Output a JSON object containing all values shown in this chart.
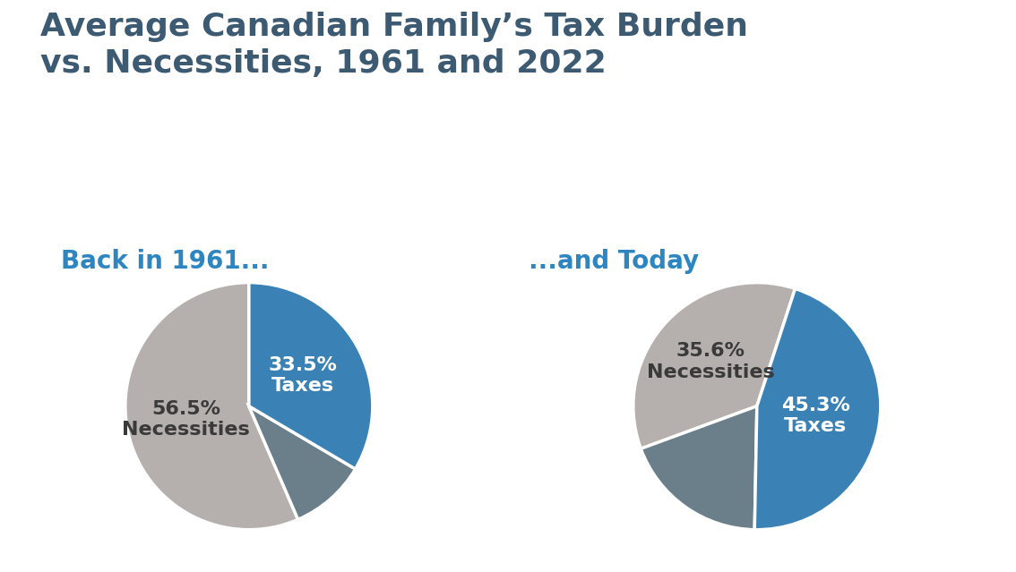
{
  "title_line1": "Average Canadian Family’s Tax Burden",
  "title_line2": "vs. Necessities, 1961 and 2022",
  "title_color": "#3d5a73",
  "title_fontsize": 26,
  "subtitle_1961": "Back in 1961...",
  "subtitle_today": "...and Today",
  "subtitle_color": "#2e86c1",
  "subtitle_fontsize": 20,
  "chart1": {
    "slices": [
      56.5,
      10.0,
      33.5
    ],
    "colors": [
      "#b5b0ad",
      "#6b7f8a",
      "#3a82b5"
    ],
    "startangle": 90,
    "taxes_pct": "33.5%",
    "nec_pct": "56.5%",
    "taxes_label": "Taxes",
    "nec_label": "Necessities"
  },
  "chart2": {
    "slices": [
      35.6,
      19.1,
      45.3
    ],
    "colors": [
      "#b5b0ad",
      "#6b7f8a",
      "#3a82b5"
    ],
    "startangle": 72,
    "taxes_pct": "45.3%",
    "nec_pct": "35.6%",
    "taxes_label": "Taxes",
    "nec_label": "Necessities"
  },
  "background_color": "#ffffff",
  "wedge_linewidth": 2.5,
  "wedge_edgecolor": "#ffffff",
  "label_fontsize": 16
}
